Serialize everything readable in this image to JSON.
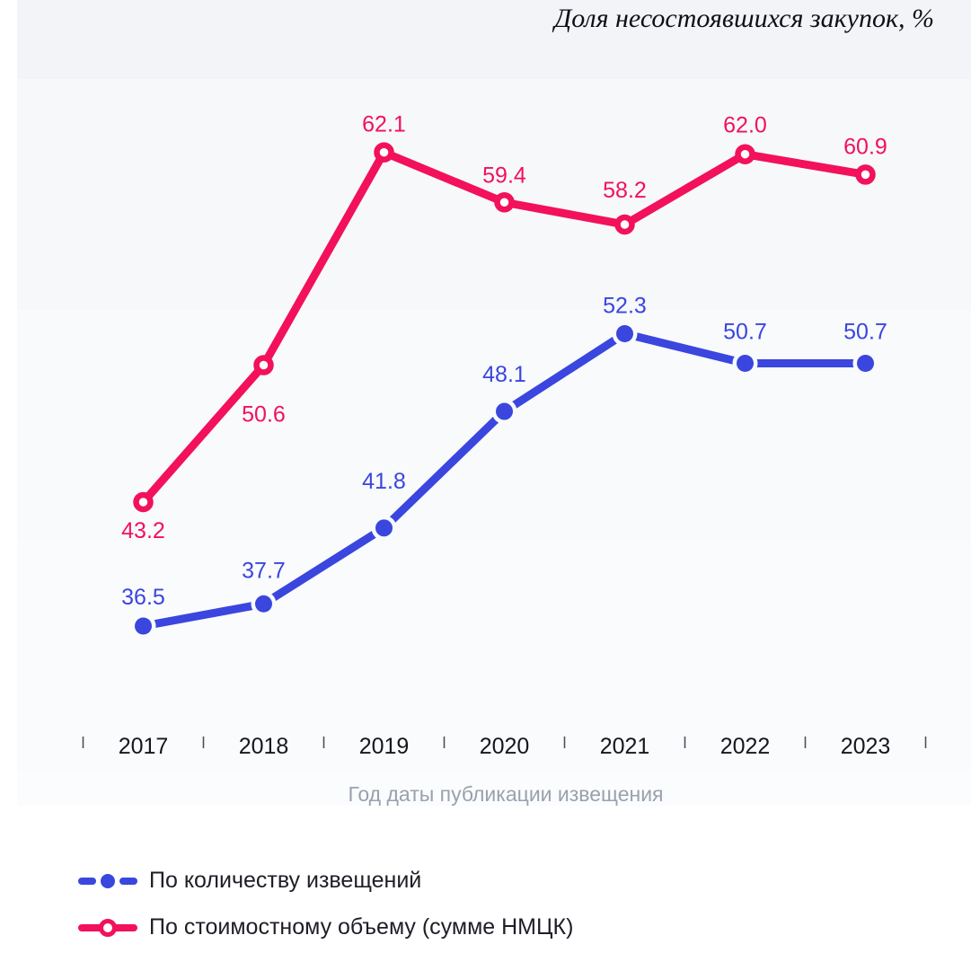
{
  "title": "Доля несостоявшихся закупок, %",
  "colors": {
    "series_count_blue": "#3A46DE",
    "series_value_red": "#F2115A",
    "axis_text": "#15171d",
    "tick": "#30343c",
    "x_axis_title_gray": "#99a1ae",
    "title_text": "#0e1016",
    "plot_bands": [
      "#f2f4f8",
      "#f6f8fa",
      "#f8fafc",
      "#fafbfd",
      "#fbfcfe"
    ]
  },
  "chart_data": {
    "type": "line",
    "title": "Доля несостоявшихся закупок, %",
    "xlabel": "Год даты публикации извещения",
    "ylabel": "",
    "categories": [
      "2017",
      "2018",
      "2019",
      "2020",
      "2021",
      "2022",
      "2023"
    ],
    "ylim": [
      26,
      68
    ],
    "grid": false,
    "legend_position": "bottom-left",
    "series": [
      {
        "name": "По количеству извещений",
        "color": "#3A46DE",
        "marker": "filled-circle",
        "values": [
          36.5,
          37.7,
          41.8,
          48.1,
          52.3,
          50.7,
          50.7
        ],
        "value_labels": [
          "36.5",
          "37.7",
          "41.8",
          "48.1",
          "52.3",
          "50.7",
          "50.7"
        ],
        "label_dy": [
          -33,
          -38,
          -53,
          -42,
          -32,
          -36,
          -36
        ]
      },
      {
        "name": "По стоимостному объему (сумме НМЦК)",
        "color": "#F2115A",
        "marker": "open-circle",
        "values": [
          43.2,
          50.6,
          62.1,
          59.4,
          58.2,
          62.0,
          60.9
        ],
        "value_labels": [
          "43.2",
          "50.6",
          "62.1",
          "59.4",
          "58.2",
          "62.0",
          "60.9"
        ],
        "label_dy": [
          31,
          54,
          -32,
          -31,
          -39,
          -33,
          -32
        ]
      }
    ]
  },
  "legend": {
    "items": [
      {
        "label": "По количеству извещений",
        "color": "#3A46DE",
        "marker": "filled-circle"
      },
      {
        "label": "По стоимостному объему (сумме НМЦК)",
        "color": "#F2115A",
        "marker": "open-circle"
      }
    ]
  }
}
